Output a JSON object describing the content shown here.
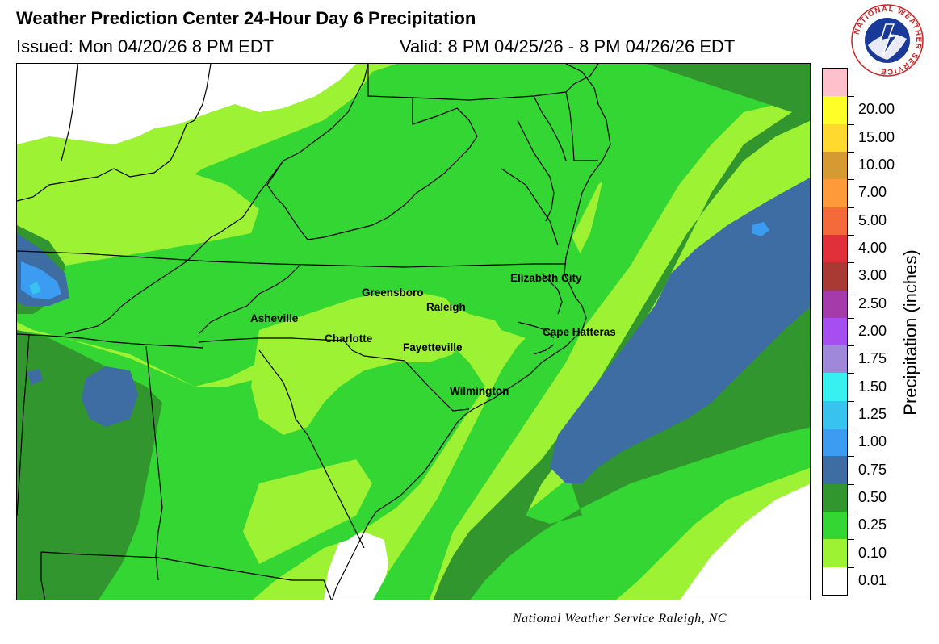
{
  "header": {
    "title": "Weather Prediction Center 24-Hour Day 6 Precipitation",
    "issued": "Issued: Mon 04/20/26 8 PM EDT",
    "valid": "Valid: 8 PM 04/25/26 - 8 PM 04/26/26 EDT"
  },
  "logo": {
    "text": "NATIONAL WEATHER SERVICE"
  },
  "legend": {
    "title": "Precipitation (inches)",
    "levels": [
      {
        "label": "",
        "color": "#ffc0cb"
      },
      {
        "label": "20.00",
        "color": "#ffff28"
      },
      {
        "label": "15.00",
        "color": "#ffd92e"
      },
      {
        "label": "10.00",
        "color": "#d69a33"
      },
      {
        "label": "7.00",
        "color": "#ff9a3a"
      },
      {
        "label": "5.00",
        "color": "#f56a3a"
      },
      {
        "label": "4.00",
        "color": "#e0313a"
      },
      {
        "label": "3.00",
        "color": "#a83a33"
      },
      {
        "label": "2.50",
        "color": "#a53aab"
      },
      {
        "label": "2.00",
        "color": "#a64ef0"
      },
      {
        "label": "1.75",
        "color": "#9f88d9"
      },
      {
        "label": "1.50",
        "color": "#37f0f0"
      },
      {
        "label": "1.25",
        "color": "#37c2f0"
      },
      {
        "label": "1.00",
        "color": "#3b9cf2"
      },
      {
        "label": "0.75",
        "color": "#3d6da3"
      },
      {
        "label": "0.50",
        "color": "#32962e"
      },
      {
        "label": "0.25",
        "color": "#33d632"
      },
      {
        "label": "0.10",
        "color": "#9cf233"
      },
      {
        "label": "0.01",
        "color": "#ffffff"
      }
    ]
  },
  "cities": [
    {
      "name": "Greensboro"
    },
    {
      "name": "Raleigh"
    },
    {
      "name": "Elizabeth City"
    },
    {
      "name": "Asheville"
    },
    {
      "name": "Charlotte"
    },
    {
      "name": "Fayetteville"
    },
    {
      "name": "Cape Hatteras"
    },
    {
      "name": "Wilmington"
    }
  ],
  "footer": {
    "credit": "National Weather Service Raleigh, NC"
  }
}
